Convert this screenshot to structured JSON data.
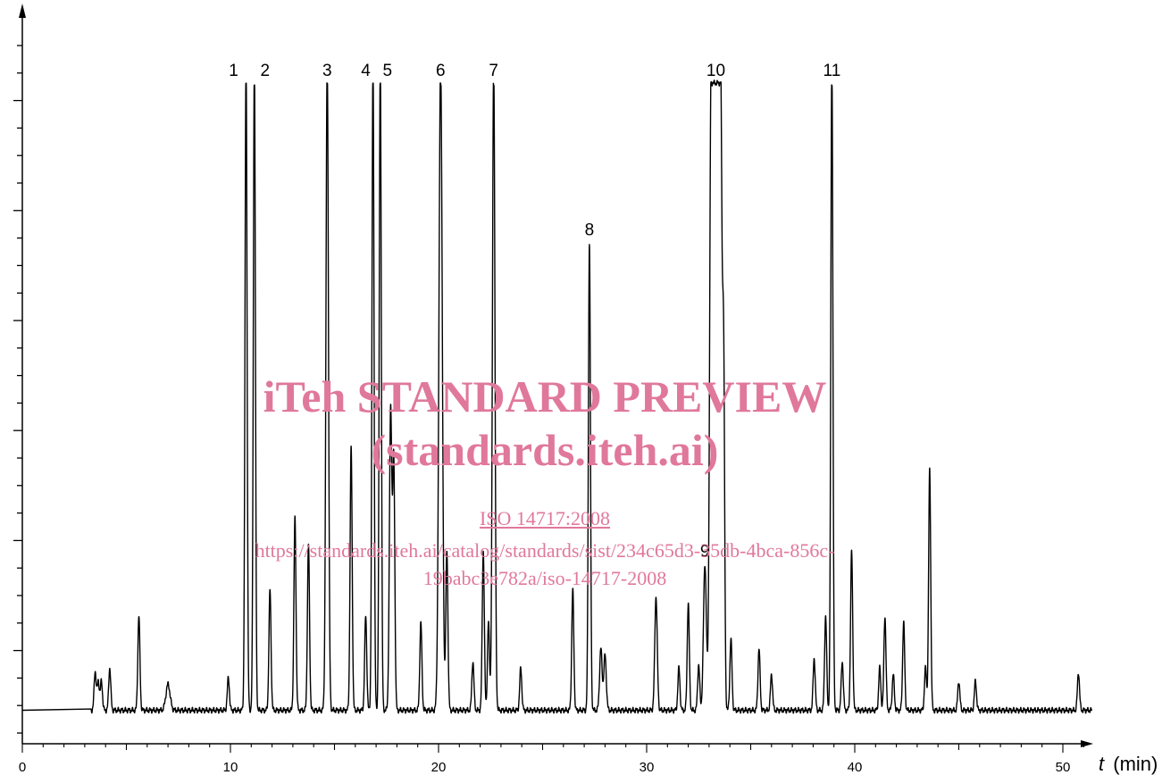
{
  "chart_data": {
    "type": "line",
    "xlabel_var": "t",
    "xlabel_unit": "(min)",
    "xlim": [
      0,
      52
    ],
    "ylim": [
      0,
      1
    ],
    "x_ticks": [
      0,
      10,
      20,
      30,
      40,
      50
    ],
    "y_tick_labels_shown": false,
    "grid": false,
    "baseline": 0.035,
    "peaks": [
      {
        "t": 3.5,
        "h": 0.06,
        "w": 0.05
      },
      {
        "t": 3.65,
        "h": 0.045,
        "w": 0.05
      },
      {
        "t": 3.8,
        "h": 0.045,
        "w": 0.05
      },
      {
        "t": 4.2,
        "h": 0.065,
        "w": 0.05
      },
      {
        "t": 5.6,
        "h": 0.145,
        "w": 0.05
      },
      {
        "t": 7.0,
        "h": 0.04,
        "w": 0.1
      },
      {
        "t": 9.9,
        "h": 0.05,
        "w": 0.05
      },
      {
        "t": 10.75,
        "h": 1.0,
        "w": 0.05,
        "label": "1"
      },
      {
        "t": 11.15,
        "h": 1.0,
        "w": 0.05,
        "label": "2"
      },
      {
        "t": 11.9,
        "h": 0.185,
        "w": 0.05
      },
      {
        "t": 13.1,
        "h": 0.295,
        "w": 0.05
      },
      {
        "t": 13.75,
        "h": 0.255,
        "w": 0.05
      },
      {
        "t": 14.65,
        "h": 1.0,
        "w": 0.06,
        "label": "3"
      },
      {
        "t": 15.8,
        "h": 0.405,
        "w": 0.05
      },
      {
        "t": 16.5,
        "h": 0.145,
        "w": 0.05
      },
      {
        "t": 16.85,
        "h": 1.0,
        "w": 0.05,
        "label": "4"
      },
      {
        "t": 17.2,
        "h": 1.0,
        "w": 0.05,
        "label": "5"
      },
      {
        "t": 17.7,
        "h": 0.465,
        "w": 0.06
      },
      {
        "t": 17.85,
        "h": 0.375,
        "w": 0.05
      },
      {
        "t": 19.15,
        "h": 0.135,
        "w": 0.05
      },
      {
        "t": 20.1,
        "h": 1.0,
        "w": 0.08,
        "label": "6"
      },
      {
        "t": 20.4,
        "h": 0.245,
        "w": 0.05
      },
      {
        "t": 21.65,
        "h": 0.075,
        "w": 0.05
      },
      {
        "t": 22.15,
        "h": 0.245,
        "w": 0.05
      },
      {
        "t": 22.4,
        "h": 0.135,
        "w": 0.05
      },
      {
        "t": 22.65,
        "h": 1.0,
        "w": 0.06,
        "label": "7"
      },
      {
        "t": 23.95,
        "h": 0.065,
        "w": 0.05
      },
      {
        "t": 26.45,
        "h": 0.185,
        "w": 0.05
      },
      {
        "t": 27.25,
        "h": 0.72,
        "w": 0.05,
        "label": "8"
      },
      {
        "t": 27.8,
        "h": 0.095,
        "w": 0.06
      },
      {
        "t": 28.0,
        "h": 0.085,
        "w": 0.06
      },
      {
        "t": 30.45,
        "h": 0.175,
        "w": 0.06
      },
      {
        "t": 31.55,
        "h": 0.065,
        "w": 0.05
      },
      {
        "t": 32.0,
        "h": 0.165,
        "w": 0.05
      },
      {
        "t": 32.5,
        "h": 0.07,
        "w": 0.05
      },
      {
        "t": 32.8,
        "h": 0.225,
        "w": 0.07,
        "label": "9"
      },
      {
        "t": 33.7,
        "h": 0.5,
        "w": 0.05
      },
      {
        "t": 34.05,
        "h": 0.11,
        "w": 0.05
      },
      {
        "t": 35.4,
        "h": 0.095,
        "w": 0.05
      },
      {
        "t": 36.0,
        "h": 0.055,
        "w": 0.05
      },
      {
        "t": 38.05,
        "h": 0.08,
        "w": 0.05
      },
      {
        "t": 38.6,
        "h": 0.145,
        "w": 0.05
      },
      {
        "t": 38.9,
        "h": 1.0,
        "w": 0.05,
        "label": "11"
      },
      {
        "t": 39.4,
        "h": 0.075,
        "w": 0.05
      },
      {
        "t": 39.85,
        "h": 0.245,
        "w": 0.05
      },
      {
        "t": 41.2,
        "h": 0.065,
        "w": 0.05
      },
      {
        "t": 41.45,
        "h": 0.145,
        "w": 0.05
      },
      {
        "t": 41.85,
        "h": 0.055,
        "w": 0.05
      },
      {
        "t": 42.35,
        "h": 0.135,
        "w": 0.05
      },
      {
        "t": 43.4,
        "h": 0.065,
        "w": 0.05
      },
      {
        "t": 43.6,
        "h": 0.37,
        "w": 0.05
      },
      {
        "t": 45.0,
        "h": 0.045,
        "w": 0.05
      },
      {
        "t": 45.8,
        "h": 0.045,
        "w": 0.05
      },
      {
        "t": 50.75,
        "h": 0.058,
        "w": 0.05
      }
    ],
    "flat_peaks": [
      {
        "label": "10",
        "t_start": 33.1,
        "t_end": 33.55,
        "h": 1.0
      }
    ],
    "line_color": "#000000"
  },
  "watermark": {
    "title": "iTeh STANDARD PREVIEW",
    "subtitle": "(standards.iteh.ai)",
    "link1": "ISO 14717:2008",
    "link2": "https://standards.iteh.ai/catalog/standards/sist/234c65d3-35db-4bca-856c-",
    "link3": "19babc3e782a/iso-14717-2008",
    "color": "#e0789b"
  }
}
